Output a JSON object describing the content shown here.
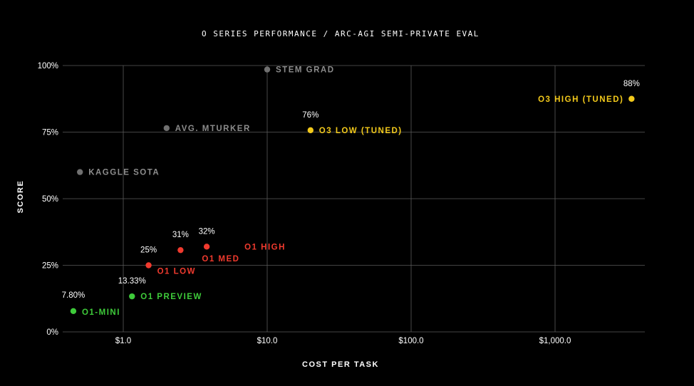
{
  "chart_data": {
    "type": "scatter",
    "title": "O SERIES PERFORMANCE / ARC-AGI SEMI-PRIVATE EVAL",
    "xlabel": "COST PER TASK",
    "ylabel": "SCORE",
    "x_scale": "log",
    "xlim": [
      0.4,
      4000
    ],
    "ylim": [
      0,
      100
    ],
    "x_ticks": [
      {
        "value": 1,
        "label": "$1.0"
      },
      {
        "value": 10,
        "label": "$10.0"
      },
      {
        "value": 100,
        "label": "$100.0"
      },
      {
        "value": 1000,
        "label": "$1,000.0"
      }
    ],
    "y_ticks": [
      {
        "value": 0,
        "label": "0%"
      },
      {
        "value": 25,
        "label": "25%"
      },
      {
        "value": 50,
        "label": "50%"
      },
      {
        "value": 75,
        "label": "75%"
      },
      {
        "value": 100,
        "label": "100%"
      }
    ],
    "grid": true,
    "colors": {
      "gray": "#8c8c8c",
      "dot_gray": "#707070",
      "yellow": "#f2c91b",
      "red": "#f03a2e",
      "green": "#3ecb3a"
    },
    "points": [
      {
        "name": "STEM GRAD",
        "x": 10,
        "y": 98.5,
        "color": "gray",
        "value_label": ""
      },
      {
        "name": "AVG. MTURKER",
        "x": 2,
        "y": 76.5,
        "color": "gray",
        "value_label": ""
      },
      {
        "name": "KAGGLE SOTA",
        "x": 0.5,
        "y": 60,
        "color": "gray",
        "value_label": ""
      },
      {
        "name": "O3 HIGH (TUNED)",
        "x": 3400,
        "y": 87.5,
        "color": "yellow",
        "value_label": "88%"
      },
      {
        "name": "O3 LOW (TUNED)",
        "x": 20,
        "y": 75.7,
        "color": "yellow",
        "value_label": "76%"
      },
      {
        "name": "O1 HIGH",
        "x": 3.8,
        "y": 32,
        "color": "red",
        "value_label": "32%"
      },
      {
        "name": "O1 MED",
        "x": 2.5,
        "y": 30.7,
        "color": "red",
        "value_label": "31%"
      },
      {
        "name": "O1 LOW",
        "x": 1.5,
        "y": 25,
        "color": "red",
        "value_label": "25%"
      },
      {
        "name": "O1 PREVIEW",
        "x": 1.15,
        "y": 13.33,
        "color": "green",
        "value_label": "13.33%"
      },
      {
        "name": "O1-MINI",
        "x": 0.45,
        "y": 7.8,
        "color": "green",
        "value_label": "7.80%"
      }
    ]
  }
}
